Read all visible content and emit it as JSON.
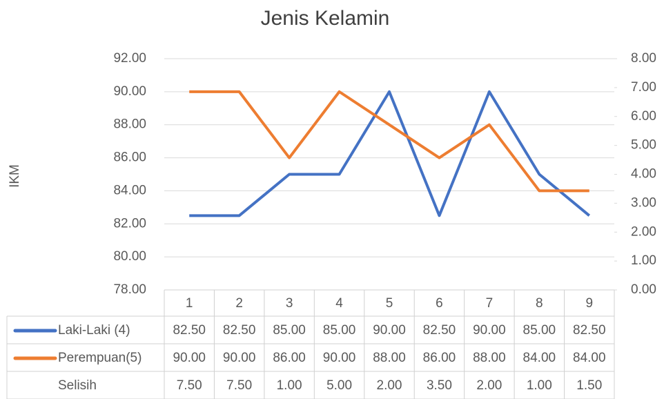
{
  "chart_data": {
    "type": "line",
    "title": "Jenis Kelamin",
    "y_label": "IKM",
    "categories": [
      "1",
      "2",
      "3",
      "4",
      "5",
      "6",
      "7",
      "8",
      "9"
    ],
    "series": [
      {
        "name": "Laki-Laki (4)",
        "color": "#4472c4",
        "values": [
          82.5,
          82.5,
          85,
          85,
          90,
          82.5,
          90,
          85,
          82.5
        ],
        "value_labels": [
          "82.50",
          "82.50",
          "85.00",
          "85.00",
          "90.00",
          "82.50",
          "90.00",
          "85.00",
          "82.50"
        ]
      },
      {
        "name": "Perempuan(5)",
        "color": "#ed7d31",
        "values": [
          90,
          90,
          86,
          90,
          88,
          86,
          88,
          84,
          84
        ],
        "value_labels": [
          "90.00",
          "90.00",
          "86.00",
          "90.00",
          "88.00",
          "86.00",
          "88.00",
          "84.00",
          "84.00"
        ]
      },
      {
        "name": "Selisih",
        "axis": "y2",
        "values": [
          7.5,
          7.5,
          1,
          5,
          2,
          3.5,
          2,
          1,
          1.5
        ],
        "value_labels": [
          "7.50",
          "7.50",
          "1.00",
          "5.00",
          "2.00",
          "3.50",
          "2.00",
          "1.00",
          "1.50"
        ]
      }
    ],
    "ylim": [
      78,
      92
    ],
    "yticks": [
      {
        "value": 78,
        "label": "78.00"
      },
      {
        "value": 80,
        "label": "80.00"
      },
      {
        "value": 82,
        "label": "82.00"
      },
      {
        "value": 84,
        "label": "84.00"
      },
      {
        "value": 86,
        "label": "86.00"
      },
      {
        "value": 88,
        "label": "88.00"
      },
      {
        "value": 90,
        "label": "90.00"
      },
      {
        "value": 92,
        "label": "92.00"
      }
    ],
    "y2lim": [
      0,
      8
    ],
    "y2ticks": [
      {
        "value": 0,
        "label": "0.00"
      },
      {
        "value": 1,
        "label": "1.00"
      },
      {
        "value": 2,
        "label": "2.00"
      },
      {
        "value": 3,
        "label": "3.00"
      },
      {
        "value": 4,
        "label": "4.00"
      },
      {
        "value": 5,
        "label": "5.00"
      },
      {
        "value": 6,
        "label": "6.00"
      },
      {
        "value": 7,
        "label": "7.00"
      },
      {
        "value": 8,
        "label": "8.00"
      }
    ],
    "grid": true
  }
}
